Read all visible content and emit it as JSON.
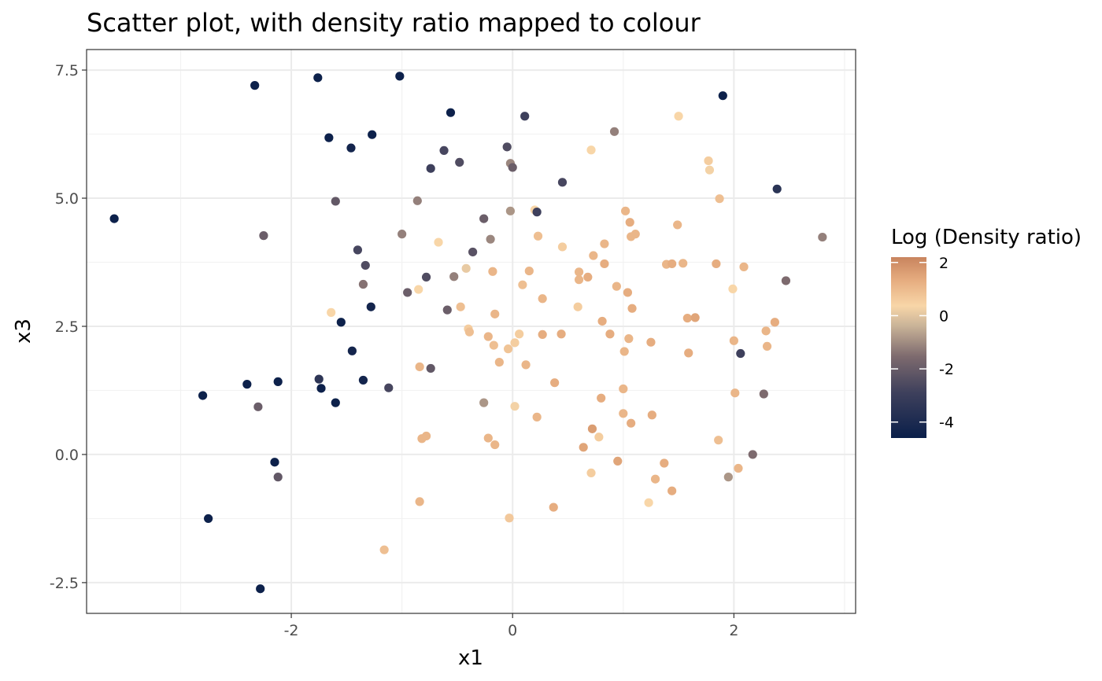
{
  "chart_data": {
    "type": "scatter",
    "title": "Scatter plot, with density ratio mapped to colour",
    "xlabel": "x1",
    "ylabel": "x3",
    "xlim": [
      -3.85,
      3.1
    ],
    "ylim": [
      -3.1,
      7.9
    ],
    "xticks": [
      -2,
      0,
      2
    ],
    "xtick_labels": [
      "-2",
      "0",
      "2"
    ],
    "yticks": [
      -2.5,
      0,
      2.5,
      5,
      7.5
    ],
    "ytick_labels": [
      "-2.5",
      "0.0",
      "2.5",
      "5.0",
      "7.5"
    ],
    "grid": true,
    "legend": {
      "title": "Log (Density ratio)",
      "placement": "right",
      "range": [
        -4.6,
        2.2
      ],
      "ticks": [
        2,
        0,
        -2,
        -4
      ],
      "tick_labels": [
        "2",
        "0",
        "-2",
        "-4"
      ],
      "colors": {
        "high": "#c8845e",
        "mid": "#f8d6a8",
        "low_mid": "#7d6a6e",
        "low": "#0a1f4a"
      }
    },
    "points": [
      {
        "x": -3.6,
        "y": 4.6,
        "c": -4.5
      },
      {
        "x": -2.8,
        "y": 1.15,
        "c": -4.5
      },
      {
        "x": -2.75,
        "y": -1.25,
        "c": -4.5
      },
      {
        "x": -2.4,
        "y": 1.37,
        "c": -4.5
      },
      {
        "x": -2.3,
        "y": 0.93,
        "c": -2.0
      },
      {
        "x": -2.28,
        "y": -2.62,
        "c": -4.5
      },
      {
        "x": -2.25,
        "y": 4.27,
        "c": -2.0
      },
      {
        "x": -2.33,
        "y": 7.2,
        "c": -4.5
      },
      {
        "x": -2.15,
        "y": -0.15,
        "c": -4.5
      },
      {
        "x": -2.12,
        "y": 1.42,
        "c": -4.5
      },
      {
        "x": -2.12,
        "y": -0.44,
        "c": -2.2
      },
      {
        "x": -1.76,
        "y": 7.35,
        "c": -4.5
      },
      {
        "x": -1.75,
        "y": 1.47,
        "c": -3.5
      },
      {
        "x": -1.73,
        "y": 1.29,
        "c": -4.5
      },
      {
        "x": -1.66,
        "y": 6.18,
        "c": -4.5
      },
      {
        "x": -1.6,
        "y": 4.94,
        "c": -2.2
      },
      {
        "x": -1.6,
        "y": 1.01,
        "c": -4.5
      },
      {
        "x": -1.64,
        "y": 2.77,
        "c": 0.3
      },
      {
        "x": -1.55,
        "y": 2.58,
        "c": -4.5
      },
      {
        "x": -1.46,
        "y": 5.98,
        "c": -4.3
      },
      {
        "x": -1.45,
        "y": 2.02,
        "c": -4.3
      },
      {
        "x": -1.4,
        "y": 3.99,
        "c": -2.8
      },
      {
        "x": -1.35,
        "y": 3.32,
        "c": -1.5
      },
      {
        "x": -1.35,
        "y": 1.45,
        "c": -4.3
      },
      {
        "x": -1.33,
        "y": 3.69,
        "c": -2.6
      },
      {
        "x": -1.27,
        "y": 6.24,
        "c": -4.5
      },
      {
        "x": -1.28,
        "y": 2.88,
        "c": -4.3
      },
      {
        "x": -1.16,
        "y": -1.86,
        "c": 0.8
      },
      {
        "x": -1.12,
        "y": 1.3,
        "c": -2.8
      },
      {
        "x": -1.02,
        "y": 7.38,
        "c": -4.5
      },
      {
        "x": -1.0,
        "y": 4.3,
        "c": -1.3
      },
      {
        "x": -0.95,
        "y": 3.16,
        "c": -2.0
      },
      {
        "x": -0.86,
        "y": 4.95,
        "c": -1.3
      },
      {
        "x": -0.85,
        "y": 3.22,
        "c": 0.3
      },
      {
        "x": -0.84,
        "y": 1.71,
        "c": 1.0
      },
      {
        "x": -0.84,
        "y": -0.92,
        "c": 1.0
      },
      {
        "x": -0.82,
        "y": 0.31,
        "c": 1.0
      },
      {
        "x": -0.78,
        "y": 0.36,
        "c": 1.0
      },
      {
        "x": -0.78,
        "y": 3.46,
        "c": -2.6
      },
      {
        "x": -0.74,
        "y": 5.58,
        "c": -3.0
      },
      {
        "x": -0.74,
        "y": 1.68,
        "c": -2.2
      },
      {
        "x": -0.67,
        "y": 4.14,
        "c": 0.3
      },
      {
        "x": -0.62,
        "y": 5.93,
        "c": -2.8
      },
      {
        "x": -0.59,
        "y": 2.82,
        "c": -2.0
      },
      {
        "x": -0.56,
        "y": 6.67,
        "c": -4.5
      },
      {
        "x": -0.53,
        "y": 3.47,
        "c": -1.3
      },
      {
        "x": -0.48,
        "y": 5.7,
        "c": -2.6
      },
      {
        "x": -0.47,
        "y": 2.88,
        "c": 0.8
      },
      {
        "x": -0.42,
        "y": 3.63,
        "c": 0.0
      },
      {
        "x": -0.4,
        "y": 2.45,
        "c": 0.5
      },
      {
        "x": -0.39,
        "y": 2.39,
        "c": 0.8
      },
      {
        "x": -0.36,
        "y": 3.95,
        "c": -2.4
      },
      {
        "x": -0.26,
        "y": 4.6,
        "c": -2.0
      },
      {
        "x": -0.26,
        "y": 1.01,
        "c": -1.0
      },
      {
        "x": -0.22,
        "y": 0.32,
        "c": 1.0
      },
      {
        "x": -0.22,
        "y": 2.3,
        "c": 1.0
      },
      {
        "x": -0.2,
        "y": 4.2,
        "c": -1.2
      },
      {
        "x": -0.18,
        "y": 3.57,
        "c": 1.0
      },
      {
        "x": -0.17,
        "y": 2.13,
        "c": 0.8
      },
      {
        "x": -0.16,
        "y": 2.74,
        "c": 1.0
      },
      {
        "x": -0.16,
        "y": 0.19,
        "c": 1.0
      },
      {
        "x": -0.12,
        "y": 1.8,
        "c": 1.0
      },
      {
        "x": -0.05,
        "y": 6.0,
        "c": -2.6
      },
      {
        "x": -0.04,
        "y": 2.06,
        "c": 0.7
      },
      {
        "x": -0.03,
        "y": -1.24,
        "c": 0.6
      },
      {
        "x": -0.02,
        "y": 5.68,
        "c": -1.2
      },
      {
        "x": -0.02,
        "y": 4.75,
        "c": -1.0
      },
      {
        "x": 0.0,
        "y": 5.6,
        "c": -2.0
      },
      {
        "x": 0.02,
        "y": 2.18,
        "c": 0.5
      },
      {
        "x": 0.02,
        "y": 0.94,
        "c": 0.2
      },
      {
        "x": 0.06,
        "y": 2.35,
        "c": 0.5
      },
      {
        "x": 0.09,
        "y": 3.31,
        "c": 0.8
      },
      {
        "x": 0.11,
        "y": 6.6,
        "c": -3.0
      },
      {
        "x": 0.12,
        "y": 1.75,
        "c": 1.0
      },
      {
        "x": 0.15,
        "y": 3.58,
        "c": 1.0
      },
      {
        "x": 0.2,
        "y": 4.77,
        "c": 0.3
      },
      {
        "x": 0.22,
        "y": 4.73,
        "c": -3.0
      },
      {
        "x": 0.22,
        "y": 0.73,
        "c": 1.0
      },
      {
        "x": 0.23,
        "y": 4.26,
        "c": 0.8
      },
      {
        "x": 0.27,
        "y": 3.04,
        "c": 1.0
      },
      {
        "x": 0.27,
        "y": 2.34,
        "c": 1.2
      },
      {
        "x": 0.37,
        "y": -1.03,
        "c": 1.2
      },
      {
        "x": 0.38,
        "y": 1.4,
        "c": 1.2
      },
      {
        "x": 0.44,
        "y": 2.35,
        "c": 1.2
      },
      {
        "x": 0.45,
        "y": 5.31,
        "c": -2.8
      },
      {
        "x": 0.45,
        "y": 4.05,
        "c": 0.5
      },
      {
        "x": 0.59,
        "y": 2.88,
        "c": 0.5
      },
      {
        "x": 0.6,
        "y": 3.56,
        "c": 1.0
      },
      {
        "x": 0.6,
        "y": 3.41,
        "c": 1.0
      },
      {
        "x": 0.64,
        "y": 0.14,
        "c": 1.4
      },
      {
        "x": 0.68,
        "y": 3.46,
        "c": 1.2
      },
      {
        "x": 0.71,
        "y": 5.94,
        "c": 0.3
      },
      {
        "x": 0.71,
        "y": -0.36,
        "c": 0.5
      },
      {
        "x": 0.72,
        "y": 0.5,
        "c": 1.6
      },
      {
        "x": 0.73,
        "y": 3.88,
        "c": 1.0
      },
      {
        "x": 0.78,
        "y": 0.34,
        "c": 0.5
      },
      {
        "x": 0.8,
        "y": 1.1,
        "c": 1.2
      },
      {
        "x": 0.81,
        "y": 2.6,
        "c": 1.2
      },
      {
        "x": 0.83,
        "y": 3.72,
        "c": 1.2
      },
      {
        "x": 0.83,
        "y": 4.11,
        "c": 1.0
      },
      {
        "x": 0.88,
        "y": 2.35,
        "c": 1.2
      },
      {
        "x": 0.92,
        "y": 6.3,
        "c": -1.3
      },
      {
        "x": 0.94,
        "y": 3.28,
        "c": 1.0
      },
      {
        "x": 0.95,
        "y": -0.13,
        "c": 1.4
      },
      {
        "x": 1.0,
        "y": 0.8,
        "c": 1.0
      },
      {
        "x": 1.0,
        "y": 1.28,
        "c": 1.0
      },
      {
        "x": 1.01,
        "y": 2.01,
        "c": 1.0
      },
      {
        "x": 1.02,
        "y": 4.75,
        "c": 1.0
      },
      {
        "x": 1.04,
        "y": 3.16,
        "c": 1.2
      },
      {
        "x": 1.05,
        "y": 2.26,
        "c": 1.0
      },
      {
        "x": 1.06,
        "y": 4.53,
        "c": 1.2
      },
      {
        "x": 1.07,
        "y": 0.61,
        "c": 1.2
      },
      {
        "x": 1.07,
        "y": 4.25,
        "c": 1.0
      },
      {
        "x": 1.08,
        "y": 2.85,
        "c": 1.2
      },
      {
        "x": 1.11,
        "y": 4.3,
        "c": 1.0
      },
      {
        "x": 1.23,
        "y": -0.94,
        "c": 0.3
      },
      {
        "x": 1.25,
        "y": 2.19,
        "c": 1.2
      },
      {
        "x": 1.26,
        "y": 0.77,
        "c": 1.2
      },
      {
        "x": 1.29,
        "y": -0.48,
        "c": 1.0
      },
      {
        "x": 1.37,
        "y": -0.17,
        "c": 1.2
      },
      {
        "x": 1.39,
        "y": 3.71,
        "c": 1.0
      },
      {
        "x": 1.44,
        "y": 3.72,
        "c": 1.2
      },
      {
        "x": 1.44,
        "y": -0.71,
        "c": 1.2
      },
      {
        "x": 1.49,
        "y": 4.48,
        "c": 1.0
      },
      {
        "x": 1.5,
        "y": 6.6,
        "c": 0.3
      },
      {
        "x": 1.54,
        "y": 3.73,
        "c": 1.0
      },
      {
        "x": 1.58,
        "y": 2.66,
        "c": 1.2
      },
      {
        "x": 1.59,
        "y": 1.98,
        "c": 1.2
      },
      {
        "x": 1.65,
        "y": 2.67,
        "c": 1.4
      },
      {
        "x": 1.77,
        "y": 5.73,
        "c": 0.5
      },
      {
        "x": 1.78,
        "y": 5.55,
        "c": 0.2
      },
      {
        "x": 1.84,
        "y": 3.72,
        "c": 1.2
      },
      {
        "x": 1.86,
        "y": 0.28,
        "c": 0.8
      },
      {
        "x": 1.87,
        "y": 4.99,
        "c": 0.8
      },
      {
        "x": 1.9,
        "y": 7.0,
        "c": -4.5
      },
      {
        "x": 1.95,
        "y": -0.44,
        "c": -1.0
      },
      {
        "x": 1.99,
        "y": 3.23,
        "c": 0.3
      },
      {
        "x": 2.0,
        "y": 2.22,
        "c": 1.0
      },
      {
        "x": 2.01,
        "y": 1.2,
        "c": 1.0
      },
      {
        "x": 2.04,
        "y": -0.27,
        "c": 1.0
      },
      {
        "x": 2.06,
        "y": 1.97,
        "c": -3.0
      },
      {
        "x": 2.09,
        "y": 3.66,
        "c": 1.0
      },
      {
        "x": 2.17,
        "y": 0.0,
        "c": -1.6
      },
      {
        "x": 2.27,
        "y": 1.18,
        "c": -1.6
      },
      {
        "x": 2.29,
        "y": 2.41,
        "c": 1.0
      },
      {
        "x": 2.3,
        "y": 2.11,
        "c": 1.0
      },
      {
        "x": 2.37,
        "y": 2.58,
        "c": 1.2
      },
      {
        "x": 2.39,
        "y": 5.18,
        "c": -3.6
      },
      {
        "x": 2.47,
        "y": 3.39,
        "c": -1.6
      },
      {
        "x": 2.8,
        "y": 4.24,
        "c": -1.3
      }
    ]
  }
}
